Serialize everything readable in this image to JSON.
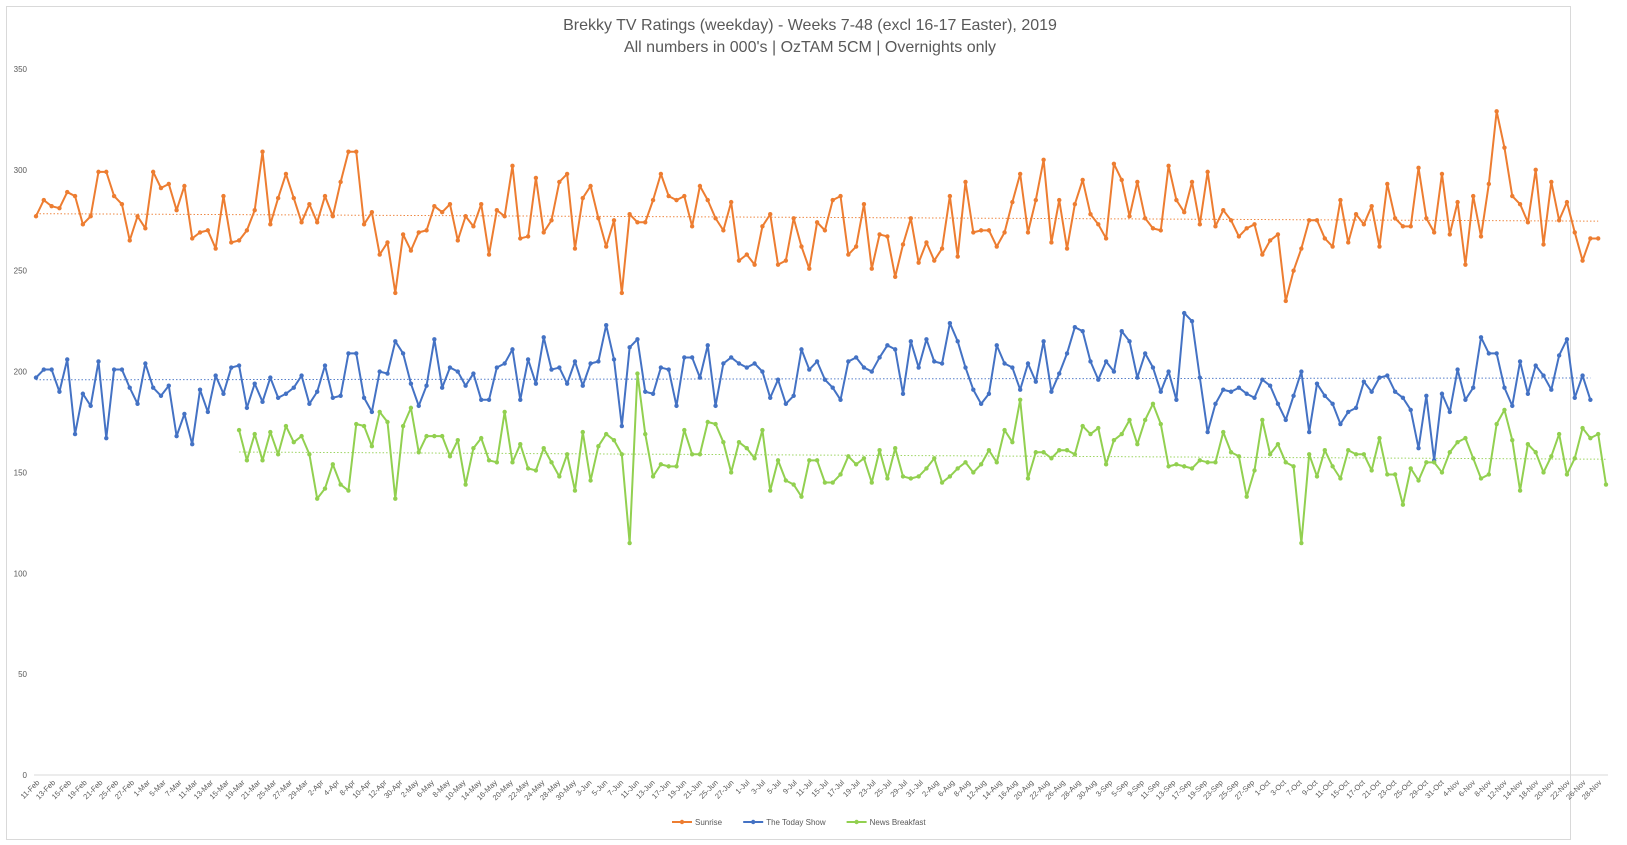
{
  "chart_data": {
    "type": "line",
    "title": "Brekky TV Ratings (weekday) - Weeks 7-48 (excl 16-17 Easter), 2019",
    "subtitle": "All numbers in 000's | OzTAM 5CM | Overnights only",
    "ylim": [
      0,
      350
    ],
    "yticks": [
      0,
      50,
      100,
      150,
      200,
      250,
      300,
      350
    ],
    "x_tick_labels": [
      "11-Feb",
      "13-Feb",
      "15-Feb",
      "19-Feb",
      "21-Feb",
      "25-Feb",
      "27-Feb",
      "1-Mar",
      "5-Mar",
      "7-Mar",
      "11-Mar",
      "13-Mar",
      "15-Mar",
      "19-Mar",
      "21-Mar",
      "25-Mar",
      "27-Mar",
      "29-Mar",
      "2-Apr",
      "4-Apr",
      "8-Apr",
      "10-Apr",
      "12-Apr",
      "30-Apr",
      "2-May",
      "6-May",
      "8-May",
      "10-May",
      "14-May",
      "16-May",
      "20-May",
      "22-May",
      "24-May",
      "28-May",
      "30-May",
      "3-Jun",
      "5-Jun",
      "7-Jun",
      "11-Jun",
      "13-Jun",
      "17-Jun",
      "19-Jun",
      "21-Jun",
      "25-Jun",
      "27-Jun",
      "1-Jul",
      "3-Jul",
      "5-Jul",
      "9-Jul",
      "11-Jul",
      "15-Jul",
      "17-Jul",
      "19-Jul",
      "23-Jul",
      "25-Jul",
      "29-Jul",
      "31-Jul",
      "2-Aug",
      "6-Aug",
      "8-Aug",
      "12-Aug",
      "14-Aug",
      "16-Aug",
      "20-Aug",
      "22-Aug",
      "26-Aug",
      "28-Aug",
      "30-Aug",
      "3-Sep",
      "5-Sep",
      "9-Sep",
      "11-Sep",
      "13-Sep",
      "17-Sep",
      "19-Sep",
      "23-Sep",
      "25-Sep",
      "27-Sep",
      "1-Oct",
      "3-Oct",
      "7-Oct",
      "9-Oct",
      "11-Oct",
      "15-Oct",
      "17-Oct",
      "21-Oct",
      "23-Oct",
      "25-Oct",
      "29-Oct",
      "31-Oct",
      "4-Nov",
      "6-Nov",
      "8-Nov",
      "12-Nov",
      "14-Nov",
      "18-Nov",
      "20-Nov",
      "22-Nov",
      "26-Nov",
      "28-Nov"
    ],
    "grid": false,
    "legend_position": "bottom",
    "trendlines": true,
    "series": [
      {
        "name": "Sunrise",
        "color": "#ed7d31",
        "offset": 0,
        "values": [
          277,
          285,
          282,
          281,
          289,
          287,
          273,
          277,
          299,
          299,
          287,
          283,
          265,
          277,
          271,
          299,
          291,
          293,
          280,
          292,
          266,
          269,
          270,
          261,
          287,
          264,
          265,
          270,
          280,
          309,
          273,
          286,
          298,
          286,
          274,
          283,
          274,
          287,
          277,
          294,
          309,
          309,
          273,
          279,
          258,
          264,
          239,
          268,
          260,
          269,
          270,
          282,
          279,
          283,
          265,
          277,
          272,
          283,
          258,
          280,
          277,
          302,
          266,
          267,
          296,
          269,
          275,
          294,
          298,
          261,
          286,
          292,
          276,
          262,
          275,
          239,
          278,
          274,
          274,
          285,
          298,
          287,
          285,
          287,
          272,
          292,
          285,
          276,
          270,
          284,
          255,
          258,
          253,
          272,
          278,
          253,
          255,
          276,
          262,
          251,
          274,
          270,
          285,
          287,
          258,
          262,
          283,
          251,
          268,
          267,
          247,
          263,
          276,
          254,
          264,
          255,
          261,
          287,
          257,
          294,
          269,
          270,
          270,
          262,
          269,
          284,
          298,
          269,
          285,
          305,
          264,
          285,
          261,
          283,
          295,
          278,
          273,
          266,
          303,
          295,
          277,
          294,
          276,
          271,
          270,
          302,
          285,
          279,
          294,
          273,
          299,
          272,
          280,
          275,
          267,
          271,
          273,
          258,
          265,
          268,
          235,
          250,
          261,
          275,
          275,
          266,
          262,
          285,
          264,
          278,
          273,
          282,
          262,
          293,
          276,
          272,
          272,
          301,
          276,
          269,
          298,
          268,
          284,
          253,
          287,
          267,
          293,
          329,
          311,
          287,
          283,
          274,
          300,
          263,
          294,
          275,
          284,
          269,
          255,
          266,
          266
        ]
      },
      {
        "name": "The Today Show",
        "color": "#4472c4",
        "offset": 0,
        "values": [
          197,
          201,
          201,
          190,
          206,
          169,
          189,
          183,
          205,
          167,
          201,
          201,
          192,
          184,
          204,
          192,
          188,
          193,
          168,
          179,
          164,
          191,
          180,
          198,
          189,
          202,
          203,
          182,
          194,
          185,
          197,
          187,
          189,
          192,
          198,
          184,
          190,
          203,
          187,
          188,
          209,
          209,
          187,
          180,
          200,
          199,
          215,
          209,
          194,
          183,
          193,
          216,
          192,
          202,
          200,
          193,
          199,
          186,
          186,
          202,
          204,
          211,
          186,
          206,
          194,
          217,
          201,
          202,
          194,
          205,
          193,
          204,
          205,
          223,
          206,
          173,
          212,
          216,
          190,
          189,
          202,
          201,
          183,
          207,
          207,
          197,
          213,
          183,
          204,
          207,
          204,
          202,
          204,
          200,
          187,
          196,
          184,
          188,
          211,
          201,
          205,
          196,
          192,
          186,
          205,
          207,
          202,
          200,
          207,
          213,
          211,
          189,
          215,
          202,
          216,
          205,
          204,
          224,
          215,
          202,
          191,
          184,
          189,
          213,
          204,
          202,
          191,
          204,
          195,
          215,
          190,
          199,
          209,
          222,
          220,
          205,
          196,
          205,
          200,
          220,
          215,
          197,
          209,
          202,
          190,
          200,
          186,
          229,
          225,
          197,
          170,
          184,
          191,
          190,
          192,
          189,
          187,
          196,
          193,
          184,
          176,
          188,
          200,
          170,
          194,
          188,
          184,
          174,
          180,
          182,
          195,
          190,
          197,
          198,
          190,
          187,
          181,
          162,
          188,
          156,
          189,
          180,
          201,
          186,
          192,
          217,
          209,
          209,
          192,
          183,
          205,
          189,
          203,
          198,
          191,
          208,
          216,
          187,
          198,
          186
        ]
      },
      {
        "name": "News Breakfast",
        "color": "#92d050",
        "offset": 26,
        "values": [
          171,
          156,
          169,
          156,
          170,
          159,
          173,
          165,
          168,
          159,
          137,
          142,
          154,
          144,
          141,
          174,
          173,
          163,
          180,
          175,
          137,
          173,
          182,
          160,
          168,
          168,
          168,
          158,
          166,
          144,
          162,
          167,
          156,
          155,
          180,
          155,
          164,
          152,
          151,
          162,
          155,
          148,
          159,
          141,
          170,
          146,
          163,
          169,
          166,
          159,
          115,
          199,
          169,
          148,
          154,
          153,
          153,
          171,
          159,
          159,
          175,
          174,
          165,
          150,
          165,
          162,
          157,
          171,
          141,
          156,
          146,
          144,
          138,
          156,
          156,
          145,
          145,
          149,
          158,
          154,
          157,
          145,
          161,
          147,
          162,
          148,
          147,
          148,
          152,
          157,
          145,
          148,
          152,
          155,
          150,
          154,
          161,
          155,
          171,
          165,
          186,
          147,
          160,
          160,
          157,
          161,
          161,
          159,
          173,
          169,
          172,
          154,
          166,
          169,
          176,
          164,
          176,
          184,
          174,
          153,
          154,
          153,
          152,
          156,
          155,
          155,
          170,
          160,
          158,
          138,
          151,
          176,
          159,
          164,
          155,
          153,
          115,
          159,
          148,
          161,
          153,
          147,
          161,
          159,
          159,
          151,
          167,
          149,
          149,
          134,
          152,
          146,
          155,
          155,
          150,
          160,
          165,
          167,
          157,
          147,
          149,
          174,
          181,
          166,
          141,
          164,
          160,
          150,
          158,
          169,
          149,
          157,
          172,
          167,
          169,
          144
        ]
      }
    ],
    "legend": [
      {
        "label": "Sunrise",
        "color": "#ed7d31"
      },
      {
        "label": "The Today Show",
        "color": "#4472c4"
      },
      {
        "label": "News Breakfast",
        "color": "#92d050"
      }
    ]
  }
}
